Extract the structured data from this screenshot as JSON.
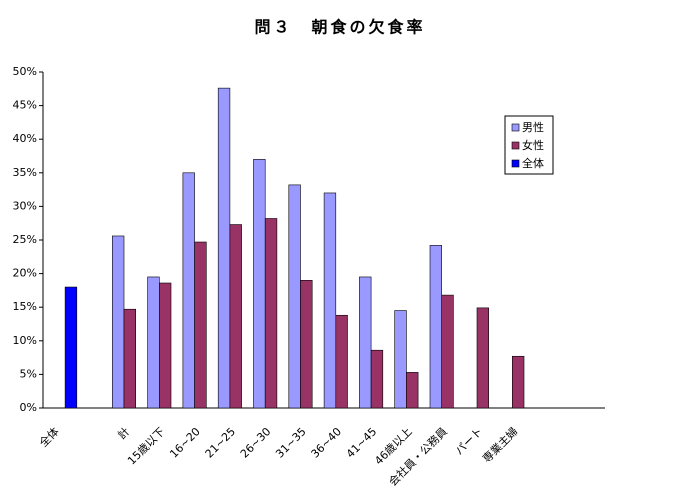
{
  "chart_data": {
    "type": "bar",
    "title": "問３　朝食の欠食率",
    "categories": [
      "全体",
      null,
      "計",
      "15歳以下",
      "16~20",
      "21~25",
      "26~30",
      "31~35",
      "36~40",
      "41~45",
      "46歳以上",
      "会社員・公務員",
      "パート",
      "専業主婦"
    ],
    "series": [
      {
        "name": "男性",
        "color": "#9999ff",
        "values": [
          null,
          null,
          25.6,
          19.5,
          35,
          47.6,
          37,
          33.2,
          32,
          19.5,
          14.5,
          24.2,
          null,
          null
        ]
      },
      {
        "name": "女性",
        "color": "#993366",
        "values": [
          null,
          null,
          14.7,
          18.6,
          24.7,
          27.3,
          28.2,
          19,
          13.8,
          8.6,
          5.3,
          16.8,
          14.9,
          7.7
        ]
      },
      {
        "name": "全体",
        "color": "#0000ff",
        "values": [
          18,
          null,
          null,
          null,
          null,
          null,
          null,
          null,
          null,
          null,
          null,
          null,
          null,
          null
        ]
      }
    ],
    "ylim": [
      0,
      50
    ],
    "yticks": [
      {
        "value": 0,
        "label": "0%"
      },
      {
        "value": 5,
        "label": "5%"
      },
      {
        "value": 10,
        "label": "10%"
      },
      {
        "value": 15,
        "label": "15%"
      },
      {
        "value": 20,
        "label": "20%"
      },
      {
        "value": 25,
        "label": "25%"
      },
      {
        "value": 30,
        "label": "30%"
      },
      {
        "value": 35,
        "label": "35%"
      },
      {
        "value": 40,
        "label": "40%"
      },
      {
        "value": 45,
        "label": "45%"
      },
      {
        "value": 50,
        "label": "50%"
      }
    ],
    "grid": false,
    "legend": "right"
  }
}
